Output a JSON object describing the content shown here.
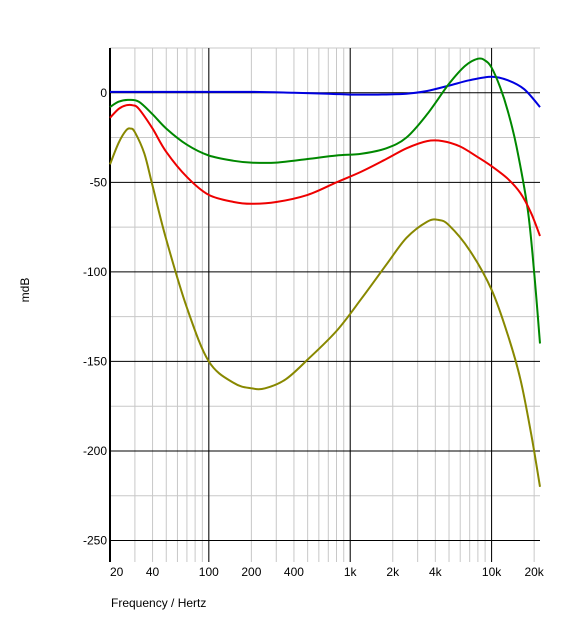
{
  "chart_data": {
    "type": "line",
    "xlabel": "Frequency / Hertz",
    "ylabel": "mdB",
    "x_scale": "log",
    "xlim": [
      20,
      22000
    ],
    "ylim": [
      -262,
      25
    ],
    "grid": true,
    "x_ticks": [
      {
        "value": 20,
        "label": "20"
      },
      {
        "value": 40,
        "label": "40"
      },
      {
        "value": 100,
        "label": "100"
      },
      {
        "value": 200,
        "label": "200"
      },
      {
        "value": 400,
        "label": "400"
      },
      {
        "value": 1000,
        "label": "1k"
      },
      {
        "value": 2000,
        "label": "2k"
      },
      {
        "value": 4000,
        "label": "4k"
      },
      {
        "value": 10000,
        "label": "10k"
      },
      {
        "value": 20000,
        "label": "20k"
      }
    ],
    "y_ticks": [
      {
        "value": 0,
        "label": "0"
      },
      {
        "value": -50,
        "label": "-50"
      },
      {
        "value": -100,
        "label": "-100"
      },
      {
        "value": -150,
        "label": "-150"
      },
      {
        "value": -200,
        "label": "-200"
      },
      {
        "value": -250,
        "label": "-250"
      }
    ],
    "series": [
      {
        "color": "#0000e0",
        "points": [
          [
            20,
            0.5
          ],
          [
            50,
            0.5
          ],
          [
            100,
            0.5
          ],
          [
            200,
            0.5
          ],
          [
            400,
            0
          ],
          [
            700,
            -0.5
          ],
          [
            1000,
            -1
          ],
          [
            1500,
            -1
          ],
          [
            2500,
            -0.5
          ],
          [
            3500,
            1
          ],
          [
            5000,
            4
          ],
          [
            7000,
            7
          ],
          [
            10000,
            9
          ],
          [
            13000,
            7
          ],
          [
            17000,
            2
          ],
          [
            22000,
            -8
          ]
        ]
      },
      {
        "color": "#008800",
        "points": [
          [
            20,
            -8
          ],
          [
            23,
            -5
          ],
          [
            27,
            -4
          ],
          [
            32,
            -5
          ],
          [
            40,
            -12
          ],
          [
            50,
            -20
          ],
          [
            70,
            -29
          ],
          [
            100,
            -35
          ],
          [
            150,
            -38
          ],
          [
            200,
            -39
          ],
          [
            300,
            -39
          ],
          [
            500,
            -37
          ],
          [
            800,
            -35
          ],
          [
            1200,
            -34
          ],
          [
            1800,
            -31
          ],
          [
            2500,
            -25
          ],
          [
            3500,
            -12
          ],
          [
            5000,
            5
          ],
          [
            6500,
            15
          ],
          [
            8000,
            19
          ],
          [
            9000,
            18
          ],
          [
            10000,
            14
          ],
          [
            11500,
            3
          ],
          [
            13000,
            -10
          ],
          [
            15000,
            -30
          ],
          [
            18000,
            -65
          ],
          [
            20000,
            -100
          ],
          [
            22000,
            -140
          ]
        ]
      },
      {
        "color": "#ee0000",
        "points": [
          [
            20,
            -14
          ],
          [
            23,
            -9
          ],
          [
            26,
            -7
          ],
          [
            29,
            -7
          ],
          [
            32,
            -9
          ],
          [
            40,
            -20
          ],
          [
            50,
            -33
          ],
          [
            70,
            -47
          ],
          [
            100,
            -57
          ],
          [
            150,
            -61
          ],
          [
            200,
            -62
          ],
          [
            300,
            -61
          ],
          [
            500,
            -57
          ],
          [
            800,
            -50
          ],
          [
            1200,
            -44
          ],
          [
            1800,
            -37
          ],
          [
            2500,
            -31
          ],
          [
            3500,
            -27
          ],
          [
            4500,
            -27
          ],
          [
            6000,
            -30
          ],
          [
            8000,
            -36
          ],
          [
            10000,
            -41
          ],
          [
            13000,
            -48
          ],
          [
            16000,
            -56
          ],
          [
            19000,
            -67
          ],
          [
            22000,
            -80
          ]
        ]
      },
      {
        "color": "#888800",
        "points": [
          [
            20,
            -40
          ],
          [
            23,
            -28
          ],
          [
            26,
            -21
          ],
          [
            28,
            -20
          ],
          [
            30,
            -22
          ],
          [
            35,
            -34
          ],
          [
            40,
            -52
          ],
          [
            50,
            -82
          ],
          [
            70,
            -120
          ],
          [
            100,
            -150
          ],
          [
            150,
            -162
          ],
          [
            200,
            -165
          ],
          [
            250,
            -165
          ],
          [
            350,
            -160
          ],
          [
            500,
            -149
          ],
          [
            800,
            -133
          ],
          [
            1200,
            -115
          ],
          [
            1800,
            -96
          ],
          [
            2500,
            -81
          ],
          [
            3500,
            -72
          ],
          [
            4200,
            -71
          ],
          [
            5000,
            -74
          ],
          [
            7000,
            -88
          ],
          [
            10000,
            -110
          ],
          [
            13000,
            -135
          ],
          [
            16000,
            -160
          ],
          [
            19000,
            -190
          ],
          [
            22000,
            -220
          ]
        ]
      }
    ]
  }
}
